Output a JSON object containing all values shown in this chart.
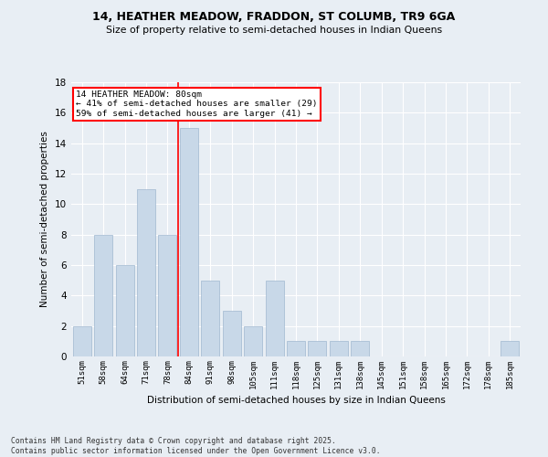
{
  "title": "14, HEATHER MEADOW, FRADDON, ST COLUMB, TR9 6GA",
  "subtitle": "Size of property relative to semi-detached houses in Indian Queens",
  "xlabel": "Distribution of semi-detached houses by size in Indian Queens",
  "ylabel": "Number of semi-detached properties",
  "footer_line1": "Contains HM Land Registry data © Crown copyright and database right 2025.",
  "footer_line2": "Contains public sector information licensed under the Open Government Licence v3.0.",
  "categories": [
    "51sqm",
    "58sqm",
    "64sqm",
    "71sqm",
    "78sqm",
    "84sqm",
    "91sqm",
    "98sqm",
    "105sqm",
    "111sqm",
    "118sqm",
    "125sqm",
    "131sqm",
    "138sqm",
    "145sqm",
    "151sqm",
    "158sqm",
    "165sqm",
    "172sqm",
    "178sqm",
    "185sqm"
  ],
  "values": [
    2,
    8,
    6,
    11,
    8,
    15,
    5,
    3,
    2,
    5,
    1,
    1,
    1,
    1,
    0,
    0,
    0,
    0,
    0,
    0,
    1
  ],
  "bar_color": "#c8d8e8",
  "bar_edge_color": "#a0b8d0",
  "background_color": "#e8eef4",
  "grid_color": "#ffffff",
  "red_line_x": 4.5,
  "annotation_title": "14 HEATHER MEADOW: 80sqm",
  "annotation_line1": "← 41% of semi-detached houses are smaller (29)",
  "annotation_line2": "59% of semi-detached houses are larger (41) →",
  "ylim": [
    0,
    18
  ],
  "yticks": [
    0,
    2,
    4,
    6,
    8,
    10,
    12,
    14,
    16,
    18
  ]
}
